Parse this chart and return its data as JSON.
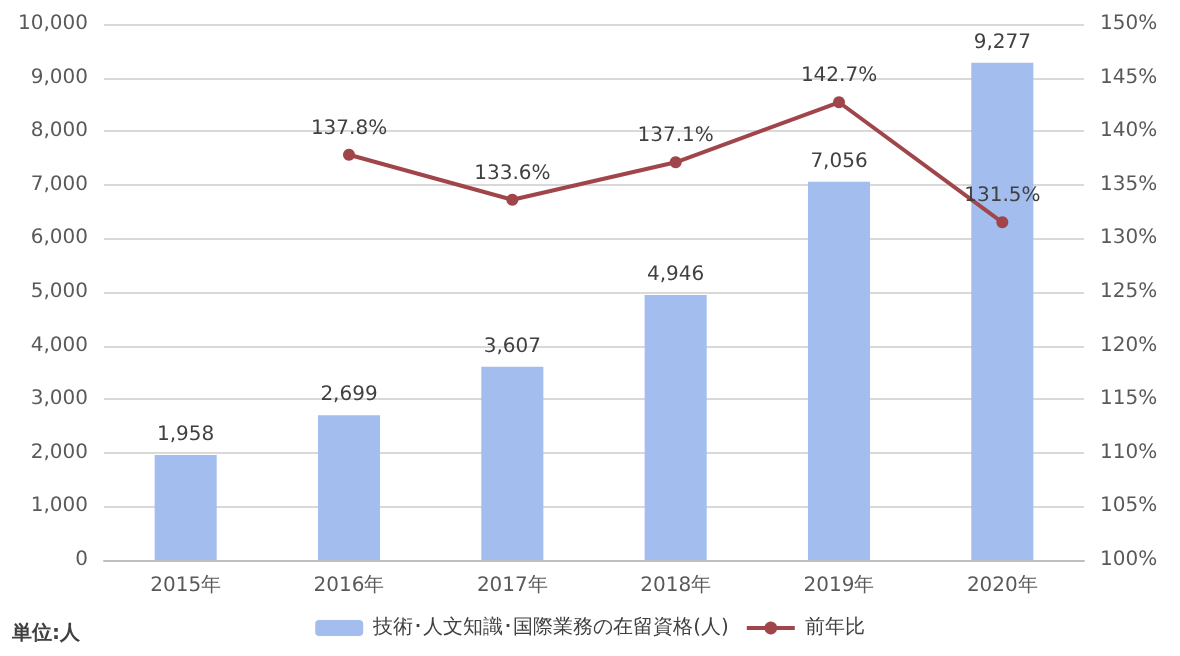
{
  "chart_data": {
    "type": "bar",
    "categories": [
      "2015年",
      "2016年",
      "2017年",
      "2018年",
      "2019年",
      "2020年"
    ],
    "series": [
      {
        "name": "技術･人文知識･国際業務の在留資格(人)",
        "color": "#a3bdee",
        "values": [
          1958,
          2699,
          3607,
          4946,
          7056,
          9277
        ],
        "value_labels": [
          "1,958",
          "2,699",
          "3,607",
          "4,946",
          "7,056",
          "9,277"
        ]
      },
      {
        "name": "前年比",
        "type": "line",
        "axis": "y2",
        "color": "#a0464b",
        "marker": "circle",
        "values": [
          null,
          137.8,
          133.6,
          137.1,
          142.7,
          131.5
        ],
        "value_labels": [
          null,
          "137.8%",
          "133.6%",
          "137.1%",
          "142.7%",
          "131.5%"
        ]
      }
    ],
    "ylim": [
      0,
      10000
    ],
    "yticks": [
      0,
      {
        "value": 1000,
        "label": "1,000"
      },
      {
        "value": 2000,
        "label": "2,000"
      },
      {
        "value": 3000,
        "label": "3,000"
      },
      {
        "value": 4000,
        "label": "4,000"
      },
      {
        "value": 5000,
        "label": "5,000"
      },
      {
        "value": 6000,
        "label": "6,000"
      },
      {
        "value": 7000,
        "label": "7,000"
      },
      {
        "value": 8000,
        "label": "8,000"
      },
      {
        "value": 9000,
        "label": "9,000"
      },
      {
        "value": 10000,
        "label": "10,000"
      }
    ],
    "y2lim": [
      100,
      150
    ],
    "y2ticks": [
      {
        "value": 100,
        "label": "100%"
      },
      {
        "value": 105,
        "label": "105%"
      },
      {
        "value": 110,
        "label": "110%"
      },
      {
        "value": 115,
        "label": "115%"
      },
      {
        "value": 120,
        "label": "120%"
      },
      {
        "value": 125,
        "label": "125%"
      },
      {
        "value": 130,
        "label": "130%"
      },
      {
        "value": 135,
        "label": "135%"
      },
      {
        "value": 140,
        "label": "140%"
      },
      {
        "value": 145,
        "label": "145%"
      },
      {
        "value": 150,
        "label": "150%"
      }
    ],
    "grid": "y",
    "legend": "bottom",
    "annotations": [
      "単位:人"
    ]
  }
}
